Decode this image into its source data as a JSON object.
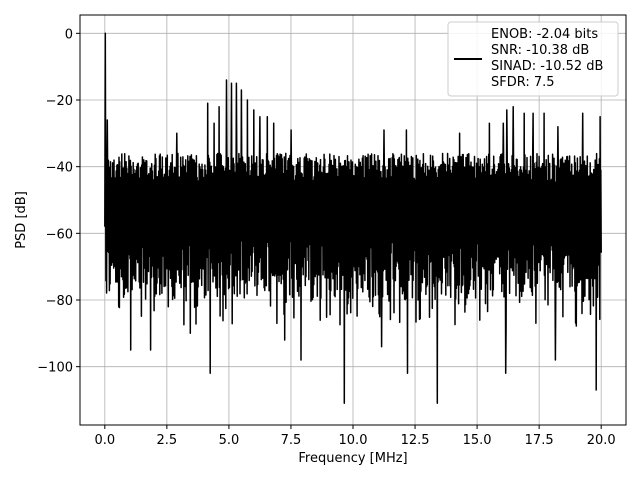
{
  "chart_data": {
    "type": "line",
    "xlabel": "Frequency [MHz]",
    "ylabel": "PSD [dB]",
    "xlim": [
      -1.0,
      21.0
    ],
    "ylim": [
      -117.5,
      5.5
    ],
    "xticks": [
      0.0,
      2.5,
      5.0,
      7.5,
      10.0,
      12.5,
      15.0,
      17.5,
      20.0
    ],
    "xtick_labels": [
      "0.0",
      "2.5",
      "5.0",
      "7.5",
      "10.0",
      "12.5",
      "15.0",
      "17.5",
      "20.0"
    ],
    "yticks": [
      0,
      -20,
      -40,
      -60,
      -80,
      -100
    ],
    "ytick_labels": [
      "0",
      "−20",
      "−40",
      "−60",
      "−80",
      "−100"
    ],
    "grid": true,
    "legend_position": "upper-right",
    "legend": {
      "lines": [
        "ENOB: -2.04 bits",
        "SNR: -10.38 dB",
        "SINAD: -10.52 dB",
        "SFDR: 7.5"
      ]
    },
    "series": [
      {
        "color": "#000000",
        "x_range": [
          0.0,
          20.0
        ],
        "noise_band_range": [
          -80,
          -36
        ],
        "dc_peak": {
          "x": 0.02,
          "y": 0
        },
        "harmonic_peaks": [
          {
            "x": 0.1,
            "y": -26
          },
          {
            "x": 2.9,
            "y": -30
          },
          {
            "x": 4.15,
            "y": -21
          },
          {
            "x": 4.4,
            "y": -27
          },
          {
            "x": 4.6,
            "y": -22
          },
          {
            "x": 4.9,
            "y": -14
          },
          {
            "x": 5.1,
            "y": -15
          },
          {
            "x": 5.3,
            "y": -15
          },
          {
            "x": 5.5,
            "y": -17
          },
          {
            "x": 5.75,
            "y": -20
          },
          {
            "x": 6.0,
            "y": -23
          },
          {
            "x": 6.25,
            "y": -25
          },
          {
            "x": 6.55,
            "y": -25
          },
          {
            "x": 6.8,
            "y": -27
          },
          {
            "x": 7.5,
            "y": -29
          },
          {
            "x": 7.9,
            "y": -29
          },
          {
            "x": 11.25,
            "y": -29
          },
          {
            "x": 12.15,
            "y": -29
          },
          {
            "x": 14.3,
            "y": -30
          },
          {
            "x": 15.5,
            "y": -27
          },
          {
            "x": 16.05,
            "y": -27
          },
          {
            "x": 16.2,
            "y": -23
          },
          {
            "x": 16.45,
            "y": -22
          },
          {
            "x": 16.9,
            "y": -24
          },
          {
            "x": 17.25,
            "y": -24
          },
          {
            "x": 17.7,
            "y": -24
          },
          {
            "x": 18.25,
            "y": -28
          },
          {
            "x": 19.25,
            "y": -24
          },
          {
            "x": 19.95,
            "y": -25
          }
        ],
        "deep_dips": [
          {
            "x": 1.05,
            "y": -95
          },
          {
            "x": 1.85,
            "y": -95
          },
          {
            "x": 3.45,
            "y": -90
          },
          {
            "x": 4.25,
            "y": -102
          },
          {
            "x": 7.25,
            "y": -92
          },
          {
            "x": 7.9,
            "y": -98
          },
          {
            "x": 9.65,
            "y": -111
          },
          {
            "x": 11.15,
            "y": -94
          },
          {
            "x": 12.2,
            "y": -102
          },
          {
            "x": 13.4,
            "y": -111
          },
          {
            "x": 16.15,
            "y": -102
          },
          {
            "x": 18.15,
            "y": -98
          },
          {
            "x": 19.8,
            "y": -107
          }
        ]
      }
    ]
  }
}
